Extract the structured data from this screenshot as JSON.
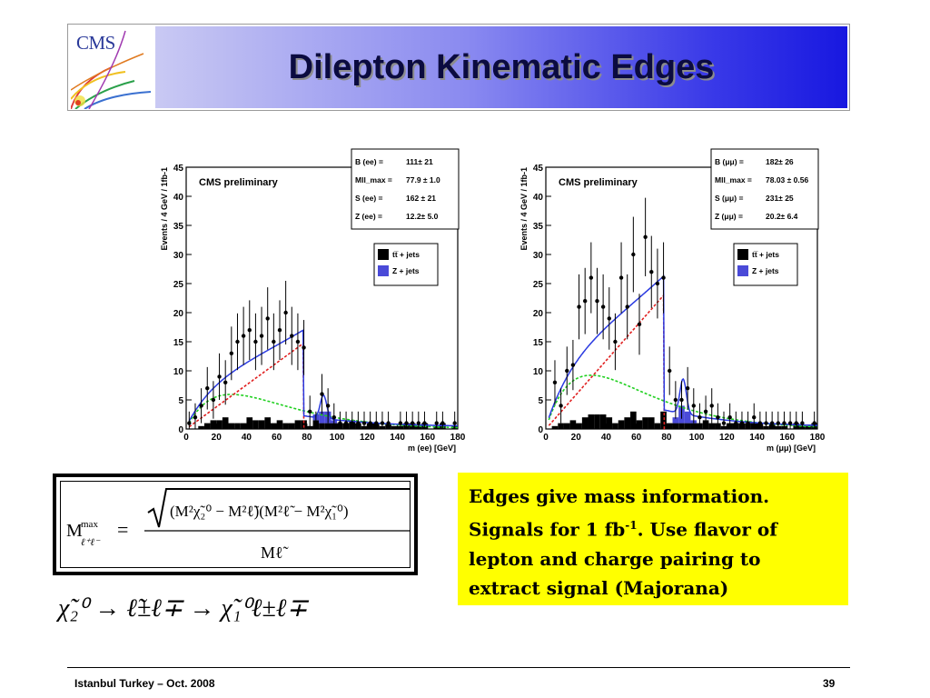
{
  "header": {
    "logo_text": "CMS",
    "title": "Dilepton Kinematic Edges"
  },
  "chart_data": [
    {
      "type": "histogram",
      "panel": "ee",
      "title": "CMS preliminary",
      "xlabel": "m (ee) [GeV]",
      "ylabel": "Events / 4 GeV / 1fb-1",
      "xlim": [
        0,
        180
      ],
      "ylim": [
        0,
        45
      ],
      "xticks": [
        "0",
        "20",
        "40",
        "60",
        "80",
        "100",
        "120",
        "140",
        "160",
        "180"
      ],
      "yticks": [
        "0",
        "5",
        "10",
        "15",
        "20",
        "25",
        "30",
        "35",
        "40",
        "45"
      ],
      "fit_results": [
        {
          "label": "B (ee) =",
          "value": "111± 21"
        },
        {
          "label": "Mll_max =",
          "value": "77.9 ± 1.0"
        },
        {
          "label": "S (ee) =",
          "value": "162 ± 21"
        },
        {
          "label": "Z (ee) =",
          "value": "12.2± 5.0"
        }
      ],
      "legend": [
        {
          "name": "tt̅ + jets",
          "color": "#000000"
        },
        {
          "name": "Z + jets",
          "color": "#4a4ad8"
        }
      ],
      "bins_x": [
        2,
        6,
        10,
        14,
        18,
        22,
        26,
        30,
        34,
        38,
        42,
        46,
        50,
        54,
        58,
        62,
        66,
        70,
        74,
        78,
        82,
        86,
        90,
        94,
        98,
        102,
        106,
        110,
        114,
        118,
        122,
        126,
        130,
        134,
        138,
        142,
        146,
        150,
        154,
        158,
        162,
        166,
        170,
        174,
        178
      ],
      "data": [
        1,
        2,
        4,
        7,
        5,
        9,
        8,
        13,
        15,
        16,
        17,
        15,
        16,
        19,
        15,
        17,
        20,
        16,
        15,
        14,
        3,
        1,
        6,
        4,
        2,
        1,
        1,
        1,
        1,
        1,
        1,
        1,
        1,
        1,
        0,
        1,
        1,
        1,
        1,
        1,
        0,
        1,
        1,
        0,
        1
      ],
      "ttbar": [
        0,
        0,
        0.5,
        1,
        1.5,
        1.5,
        2,
        1,
        1,
        1,
        2,
        1.5,
        1.5,
        2,
        1,
        1.5,
        1,
        1,
        1.5,
        1.5,
        0.5,
        1.5,
        1,
        1,
        1,
        1,
        1,
        1.5,
        1,
        0.5,
        1,
        1,
        0.5,
        1,
        0.5,
        0.5,
        1,
        1,
        0.5,
        1,
        0,
        0.5,
        1,
        0,
        0.5
      ],
      "zjets": [
        0,
        0,
        0,
        0,
        0,
        0,
        0,
        0,
        0,
        0,
        0,
        0,
        0,
        0,
        0,
        0,
        0,
        0,
        0,
        0,
        0,
        1,
        2,
        2,
        0.5,
        0,
        0,
        0,
        0,
        0,
        0,
        0,
        0,
        0,
        0,
        0,
        0,
        0,
        0,
        0,
        0,
        0,
        0,
        0,
        0
      ],
      "total_fit_peak": 18,
      "edge": 77.9
    },
    {
      "type": "histogram",
      "panel": "mumu",
      "title": "CMS preliminary",
      "xlabel": "m (μμ) [GeV]",
      "ylabel": "Events / 4 GeV / 1fb-1",
      "xlim": [
        0,
        180
      ],
      "ylim": [
        0,
        45
      ],
      "xticks": [
        "0",
        "20",
        "40",
        "60",
        "80",
        "100",
        "120",
        "140",
        "160",
        "180"
      ],
      "yticks": [
        "0",
        "5",
        "10",
        "15",
        "20",
        "25",
        "30",
        "35",
        "40",
        "45"
      ],
      "fit_results": [
        {
          "label": "B (μμ) =",
          "value": "182± 26"
        },
        {
          "label": "Mll_max =",
          "value": "78.03 ± 0.56"
        },
        {
          "label": "S (μμ) =",
          "value": "231± 25"
        },
        {
          "label": "Z (μμ) =",
          "value": "20.2± 6.4"
        }
      ],
      "legend": [
        {
          "name": "tt̅ + jets",
          "color": "#000000"
        },
        {
          "name": "Z + jets",
          "color": "#4a4ad8"
        }
      ],
      "bins_x": [
        2,
        6,
        10,
        14,
        18,
        22,
        26,
        30,
        34,
        38,
        42,
        46,
        50,
        54,
        58,
        62,
        66,
        70,
        74,
        78,
        82,
        86,
        90,
        94,
        98,
        102,
        106,
        110,
        114,
        118,
        122,
        126,
        130,
        134,
        138,
        142,
        146,
        150,
        154,
        158,
        162,
        166,
        170,
        174,
        178
      ],
      "data": [
        0,
        8,
        4,
        10,
        11,
        21,
        22,
        26,
        22,
        21,
        19,
        15,
        26,
        21,
        30,
        18,
        33,
        27,
        25,
        26,
        10,
        5,
        5,
        7,
        4,
        2,
        3,
        4,
        2,
        1,
        2,
        1,
        1,
        1,
        2,
        1,
        1,
        1,
        1,
        1,
        1,
        1,
        1,
        0,
        1
      ],
      "ttbar": [
        0,
        0.5,
        1,
        1,
        1.5,
        1,
        2,
        2.5,
        2.5,
        2.5,
        2,
        1,
        1.5,
        2,
        3,
        1.5,
        2,
        2,
        1,
        3,
        1,
        1,
        1,
        1,
        1,
        1,
        1.5,
        1,
        1,
        0.5,
        1,
        1,
        1,
        1,
        1,
        1,
        0.5,
        1,
        0.5,
        0.5,
        0,
        1,
        0.5,
        0.5,
        1
      ],
      "zjets": [
        0,
        0,
        0,
        0,
        0,
        0,
        0,
        0,
        0,
        0,
        0,
        0,
        0,
        0,
        0,
        0,
        0,
        0,
        0,
        0,
        0,
        1,
        3,
        2,
        0.5,
        0,
        0,
        0,
        0,
        0,
        0,
        0,
        0,
        0,
        0,
        0,
        0,
        0,
        0,
        0,
        0,
        0,
        0,
        0,
        0
      ],
      "total_fit_peak": 28,
      "edge": 78.03
    }
  ],
  "formula": {
    "lhs_M": "M",
    "lhs_sup": "max",
    "lhs_sub": "ℓ⁺ℓ⁻",
    "equals": "=",
    "numerator": "(M²χ̃₂⁰ − M²ℓ̃)(M²ℓ̃ − M²χ̃₁⁰)",
    "denominator": "Mℓ̃"
  },
  "decay": {
    "text": "χ̃₂⁰ → ℓ̃±ℓ∓ → χ̃₁⁰ℓ±ℓ∓"
  },
  "note": {
    "line1": "Edges give mass information.",
    "line2a": "Signals for 1 fb",
    "line2sup": "-1",
    "line2b": ". Use flavor of",
    "line3": "lepton and charge pairing to",
    "line4": "extract signal (Majorana)"
  },
  "footer": {
    "left": "Istanbul Turkey – Oct. 2008",
    "right": "39"
  },
  "colors": {
    "title_band_start": "#c9c9f3",
    "title_band_end": "#1818e0",
    "note_bg": "#ffff00",
    "fit_total": "#2a3ae0",
    "fit_signal": "#e02020",
    "fit_background": "#20d020"
  }
}
